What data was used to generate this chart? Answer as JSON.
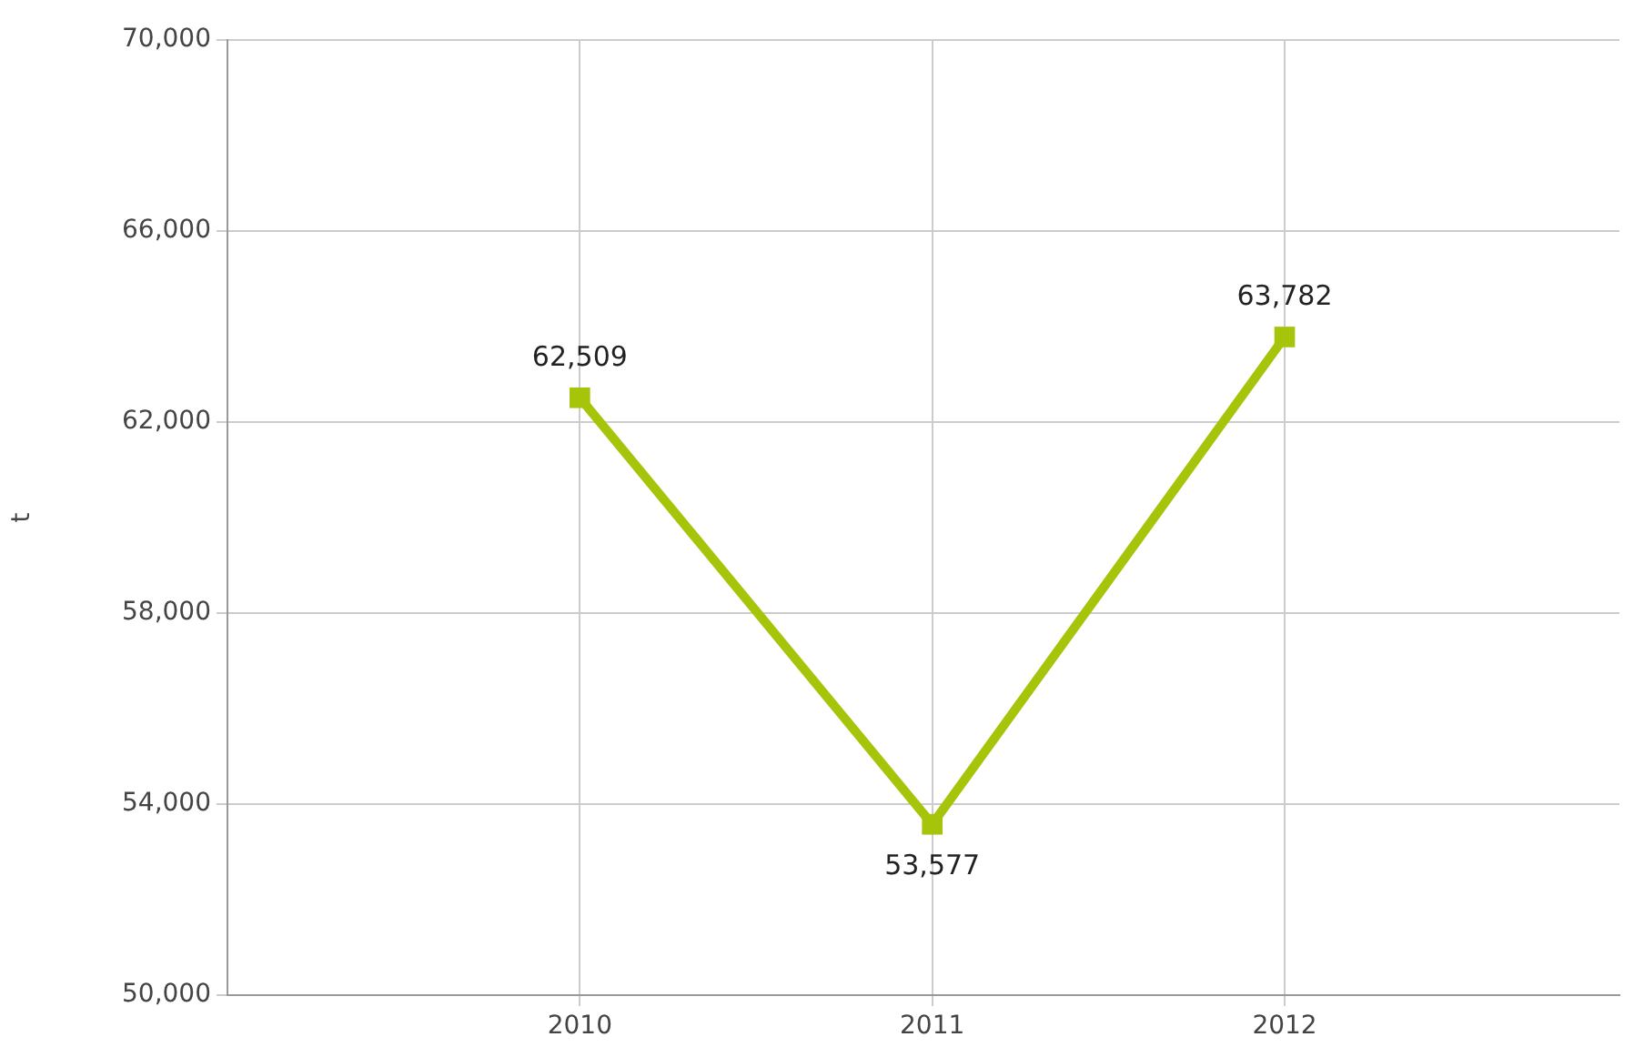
{
  "chart_data": {
    "type": "line",
    "ylabel": "t",
    "x": [
      2010,
      2011,
      2012
    ],
    "series": [
      {
        "color": "#a5c40a",
        "values": [
          62509,
          53577,
          63782
        ],
        "value_labels": [
          "62,509",
          "53,577",
          "63,782"
        ]
      }
    ],
    "xlim": [
      2009,
      2012.95
    ],
    "xticks": [
      2010,
      2011,
      2012
    ],
    "ylim": [
      50000,
      70000
    ],
    "yticks": [
      {
        "value": 50000,
        "label": "50,000"
      },
      {
        "value": 54000,
        "label": "54,000"
      },
      {
        "value": 58000,
        "label": "58,000"
      },
      {
        "value": 62000,
        "label": "62,000"
      },
      {
        "value": 66000,
        "label": "66,000"
      },
      {
        "value": 70000,
        "label": "70,000"
      }
    ],
    "grid": true,
    "legend": false,
    "marker": "square",
    "line_style": "solid"
  }
}
